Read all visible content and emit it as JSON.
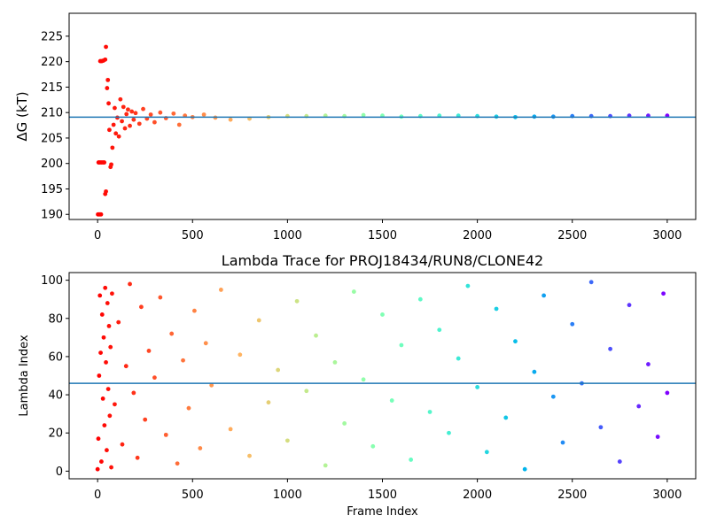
{
  "chart_data": [
    {
      "type": "scatter",
      "title": "",
      "xlabel": "",
      "ylabel": "ΔG (kT)",
      "xlim": [
        -150,
        3150
      ],
      "ylim": [
        189,
        229.5
      ],
      "xticks": [
        0,
        500,
        1000,
        1500,
        2000,
        2500,
        3000
      ],
      "yticks": [
        190,
        195,
        200,
        205,
        210,
        215,
        220,
        225
      ],
      "colormap": "rainbow (reversed by frame)",
      "grid": false,
      "legend": "none",
      "hline": {
        "y": 209.1,
        "color": "#1f77b4"
      },
      "series": [
        {
          "points": [
            [
              2,
              190.0
            ],
            [
              6,
              190.0
            ],
            [
              10,
              190.0
            ],
            [
              14,
              190.0
            ],
            [
              18,
              190.0
            ],
            [
              5,
              200.2
            ],
            [
              12,
              200.2
            ],
            [
              20,
              200.2
            ],
            [
              28,
              200.2
            ],
            [
              35,
              200.2
            ],
            [
              14,
              220.1
            ],
            [
              22,
              220.1
            ],
            [
              30,
              220.2
            ],
            [
              40,
              220.4
            ],
            [
              44,
              222.9
            ],
            [
              40,
              194.0
            ],
            [
              44,
              194.5
            ],
            [
              50,
              214.8
            ],
            [
              54,
              216.4
            ],
            [
              58,
              211.8
            ],
            [
              62,
              206.6
            ],
            [
              68,
              199.3
            ],
            [
              72,
              199.8
            ],
            [
              78,
              203.1
            ],
            [
              84,
              207.6
            ],
            [
              90,
              210.9
            ],
            [
              96,
              205.9
            ],
            [
              104,
              209.0
            ],
            [
              112,
              205.3
            ],
            [
              120,
              212.6
            ],
            [
              128,
              208.3
            ],
            [
              136,
              211.1
            ],
            [
              144,
              206.9
            ],
            [
              152,
              209.7
            ],
            [
              160,
              210.6
            ],
            [
              170,
              207.4
            ],
            [
              180,
              210.2
            ],
            [
              190,
              208.6
            ],
            [
              200,
              209.9
            ],
            [
              220,
              207.8
            ],
            [
              240,
              210.7
            ],
            [
              260,
              208.8
            ],
            [
              280,
              209.6
            ],
            [
              300,
              208.1
            ],
            [
              330,
              210.0
            ],
            [
              360,
              208.9
            ],
            [
              400,
              209.8
            ],
            [
              430,
              207.6
            ],
            [
              460,
              209.4
            ],
            [
              500,
              209.1
            ],
            [
              560,
              209.6
            ],
            [
              620,
              209.0
            ],
            [
              700,
              208.6
            ],
            [
              800,
              208.8
            ],
            [
              900,
              209.1
            ],
            [
              1000,
              209.3
            ],
            [
              1100,
              209.3
            ],
            [
              1200,
              209.4
            ],
            [
              1300,
              209.3
            ],
            [
              1400,
              209.5
            ],
            [
              1500,
              209.4
            ],
            [
              1600,
              209.2
            ],
            [
              1700,
              209.3
            ],
            [
              1800,
              209.4
            ],
            [
              1900,
              209.4
            ],
            [
              2000,
              209.3
            ],
            [
              2100,
              209.2
            ],
            [
              2200,
              209.1
            ],
            [
              2300,
              209.2
            ],
            [
              2400,
              209.2
            ],
            [
              2500,
              209.3
            ],
            [
              2600,
              209.3
            ],
            [
              2700,
              209.3
            ],
            [
              2800,
              209.4
            ],
            [
              2900,
              209.4
            ],
            [
              3000,
              209.4
            ]
          ]
        }
      ]
    },
    {
      "type": "scatter",
      "title": "Lambda Trace for PROJ18434/RUN8/CLONE42",
      "xlabel": "Frame Index",
      "ylabel": "Lambda Index",
      "xlim": [
        -150,
        3150
      ],
      "ylim": [
        -4,
        104
      ],
      "xticks": [
        0,
        500,
        1000,
        1500,
        2000,
        2500,
        3000
      ],
      "yticks": [
        0,
        20,
        40,
        60,
        80,
        100
      ],
      "colormap": "rainbow (reversed by frame)",
      "grid": false,
      "legend": "none",
      "hline": {
        "y": 46,
        "color": "#1f77b4"
      },
      "series": [
        {
          "points": [
            [
              0,
              1
            ],
            [
              4,
              17
            ],
            [
              8,
              50
            ],
            [
              12,
              92
            ],
            [
              16,
              62
            ],
            [
              20,
              5
            ],
            [
              24,
              82
            ],
            [
              28,
              38
            ],
            [
              32,
              70
            ],
            [
              36,
              24
            ],
            [
              40,
              96
            ],
            [
              44,
              57
            ],
            [
              48,
              11
            ],
            [
              52,
              88
            ],
            [
              56,
              43
            ],
            [
              60,
              76
            ],
            [
              64,
              29
            ],
            [
              68,
              65
            ],
            [
              72,
              2
            ],
            [
              76,
              93
            ],
            [
              90,
              35
            ],
            [
              110,
              78
            ],
            [
              130,
              14
            ],
            [
              150,
              55
            ],
            [
              170,
              98
            ],
            [
              190,
              41
            ],
            [
              210,
              7
            ],
            [
              230,
              86
            ],
            [
              250,
              27
            ],
            [
              270,
              63
            ],
            [
              300,
              49
            ],
            [
              330,
              91
            ],
            [
              360,
              19
            ],
            [
              390,
              72
            ],
            [
              420,
              4
            ],
            [
              450,
              58
            ],
            [
              480,
              33
            ],
            [
              510,
              84
            ],
            [
              540,
              12
            ],
            [
              570,
              67
            ],
            [
              600,
              45
            ],
            [
              650,
              95
            ],
            [
              700,
              22
            ],
            [
              750,
              61
            ],
            [
              800,
              8
            ],
            [
              850,
              79
            ],
            [
              900,
              36
            ],
            [
              950,
              53
            ],
            [
              1000,
              16
            ],
            [
              1050,
              89
            ],
            [
              1100,
              42
            ],
            [
              1150,
              71
            ],
            [
              1200,
              3
            ],
            [
              1250,
              57
            ],
            [
              1300,
              25
            ],
            [
              1350,
              94
            ],
            [
              1400,
              48
            ],
            [
              1450,
              13
            ],
            [
              1500,
              82
            ],
            [
              1550,
              37
            ],
            [
              1600,
              66
            ],
            [
              1650,
              6
            ],
            [
              1700,
              90
            ],
            [
              1750,
              31
            ],
            [
              1800,
              74
            ],
            [
              1850,
              20
            ],
            [
              1900,
              59
            ],
            [
              1950,
              97
            ],
            [
              2000,
              44
            ],
            [
              2050,
              10
            ],
            [
              2100,
              85
            ],
            [
              2150,
              28
            ],
            [
              2200,
              68
            ],
            [
              2250,
              1
            ],
            [
              2300,
              52
            ],
            [
              2350,
              92
            ],
            [
              2400,
              39
            ],
            [
              2450,
              15
            ],
            [
              2500,
              77
            ],
            [
              2550,
              46
            ],
            [
              2600,
              99
            ],
            [
              2650,
              23
            ],
            [
              2700,
              64
            ],
            [
              2750,
              5
            ],
            [
              2800,
              87
            ],
            [
              2850,
              34
            ],
            [
              2900,
              56
            ],
            [
              2950,
              18
            ],
            [
              2980,
              93
            ],
            [
              3000,
              41
            ]
          ]
        }
      ]
    }
  ]
}
